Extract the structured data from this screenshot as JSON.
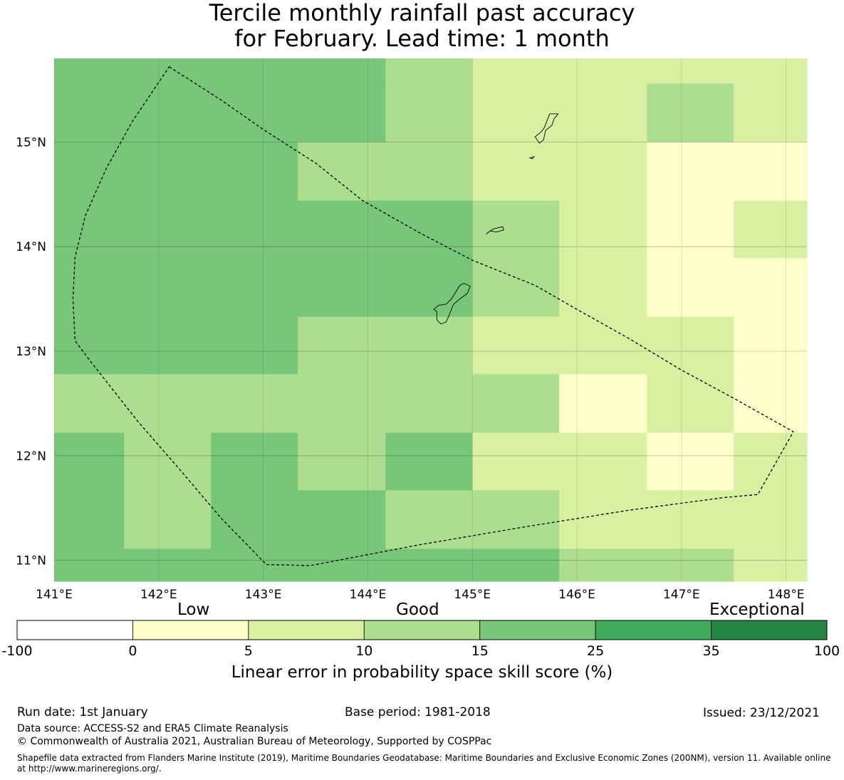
{
  "title": {
    "line1": "Tercile monthly rainfall past accuracy",
    "line2": "for February. Lead time: 1 month"
  },
  "map": {
    "lon_range": [
      141.0,
      148.2
    ],
    "lat_range": [
      10.8,
      15.8
    ],
    "lon_ticks": [
      "141°E",
      "142°E",
      "143°E",
      "144°E",
      "145°E",
      "146°E",
      "147°E",
      "148°E"
    ],
    "lat_ticks": [
      "11°N",
      "12°N",
      "13°N",
      "14°N",
      "15°N"
    ],
    "grid": true,
    "cells": [
      {
        "lon0": 141.0,
        "lon1": 142.5,
        "lat0": 15.56,
        "lat1": 15.8,
        "cat": 4
      },
      {
        "lon0": 142.5,
        "lon1": 144.17,
        "lat0": 15.56,
        "lat1": 15.8,
        "cat": 4
      },
      {
        "lon0": 144.17,
        "lon1": 145.0,
        "lat0": 15.56,
        "lat1": 15.8,
        "cat": 3
      },
      {
        "lon0": 145.0,
        "lon1": 148.2,
        "lat0": 15.56,
        "lat1": 15.8,
        "cat": 2
      },
      {
        "lon0": 141.0,
        "lon1": 144.17,
        "lat0": 15.0,
        "lat1": 15.56,
        "cat": 4
      },
      {
        "lon0": 144.17,
        "lon1": 145.0,
        "lat0": 15.0,
        "lat1": 15.56,
        "cat": 3
      },
      {
        "lon0": 145.0,
        "lon1": 146.67,
        "lat0": 15.0,
        "lat1": 15.56,
        "cat": 2
      },
      {
        "lon0": 146.67,
        "lon1": 147.5,
        "lat0": 15.0,
        "lat1": 15.56,
        "cat": 3
      },
      {
        "lon0": 147.5,
        "lon1": 148.2,
        "lat0": 15.0,
        "lat1": 15.56,
        "cat": 2
      },
      {
        "lon0": 141.0,
        "lon1": 143.33,
        "lat0": 14.44,
        "lat1": 15.0,
        "cat": 4
      },
      {
        "lon0": 143.33,
        "lon1": 145.0,
        "lat0": 14.44,
        "lat1": 15.0,
        "cat": 3
      },
      {
        "lon0": 145.0,
        "lon1": 146.67,
        "lat0": 14.44,
        "lat1": 15.0,
        "cat": 2
      },
      {
        "lon0": 146.67,
        "lon1": 148.2,
        "lat0": 14.44,
        "lat1": 15.0,
        "cat": 1
      },
      {
        "lon0": 141.0,
        "lon1": 145.0,
        "lat0": 13.33,
        "lat1": 14.44,
        "cat": 4
      },
      {
        "lon0": 145.0,
        "lon1": 145.83,
        "lat0": 13.33,
        "lat1": 14.44,
        "cat": 3
      },
      {
        "lon0": 145.83,
        "lon1": 146.67,
        "lat0": 13.33,
        "lat1": 14.44,
        "cat": 2
      },
      {
        "lon0": 146.67,
        "lon1": 147.5,
        "lat0": 13.33,
        "lat1": 14.44,
        "cat": 1
      },
      {
        "lon0": 147.5,
        "lon1": 148.2,
        "lat0": 13.89,
        "lat1": 14.44,
        "cat": 2
      },
      {
        "lon0": 147.5,
        "lon1": 148.2,
        "lat0": 13.33,
        "lat1": 13.89,
        "cat": 1
      },
      {
        "lon0": 141.0,
        "lon1": 143.33,
        "lat0": 12.78,
        "lat1": 13.33,
        "cat": 4
      },
      {
        "lon0": 143.33,
        "lon1": 145.0,
        "lat0": 12.78,
        "lat1": 13.33,
        "cat": 3
      },
      {
        "lon0": 145.0,
        "lon1": 147.5,
        "lat0": 12.78,
        "lat1": 13.33,
        "cat": 2
      },
      {
        "lon0": 147.5,
        "lon1": 148.2,
        "lat0": 12.78,
        "lat1": 13.33,
        "cat": 1
      },
      {
        "lon0": 141.0,
        "lon1": 145.0,
        "lat0": 12.22,
        "lat1": 12.78,
        "cat": 3
      },
      {
        "lon0": 145.0,
        "lon1": 145.83,
        "lat0": 12.22,
        "lat1": 12.78,
        "cat": 3
      },
      {
        "lon0": 145.83,
        "lon1": 146.67,
        "lat0": 12.22,
        "lat1": 12.78,
        "cat": 1
      },
      {
        "lon0": 146.67,
        "lon1": 147.5,
        "lat0": 12.22,
        "lat1": 12.78,
        "cat": 2
      },
      {
        "lon0": 147.5,
        "lon1": 148.2,
        "lat0": 12.22,
        "lat1": 12.78,
        "cat": 1
      },
      {
        "lon0": 141.0,
        "lon1": 141.67,
        "lat0": 11.67,
        "lat1": 12.22,
        "cat": 4
      },
      {
        "lon0": 141.67,
        "lon1": 142.5,
        "lat0": 11.67,
        "lat1": 12.22,
        "cat": 3
      },
      {
        "lon0": 142.5,
        "lon1": 143.33,
        "lat0": 11.67,
        "lat1": 12.22,
        "cat": 4
      },
      {
        "lon0": 143.33,
        "lon1": 144.17,
        "lat0": 11.67,
        "lat1": 12.22,
        "cat": 3
      },
      {
        "lon0": 144.17,
        "lon1": 145.0,
        "lat0": 11.67,
        "lat1": 12.22,
        "cat": 4
      },
      {
        "lon0": 145.0,
        "lon1": 146.67,
        "lat0": 11.67,
        "lat1": 12.22,
        "cat": 2
      },
      {
        "lon0": 146.67,
        "lon1": 147.5,
        "lat0": 11.67,
        "lat1": 12.22,
        "cat": 1
      },
      {
        "lon0": 147.5,
        "lon1": 148.2,
        "lat0": 11.67,
        "lat1": 12.22,
        "cat": 2
      },
      {
        "lon0": 141.0,
        "lon1": 141.67,
        "lat0": 11.11,
        "lat1": 11.67,
        "cat": 4
      },
      {
        "lon0": 141.67,
        "lon1": 142.5,
        "lat0": 11.11,
        "lat1": 11.67,
        "cat": 3
      },
      {
        "lon0": 142.5,
        "lon1": 144.17,
        "lat0": 11.11,
        "lat1": 11.67,
        "cat": 4
      },
      {
        "lon0": 144.17,
        "lon1": 145.83,
        "lat0": 11.11,
        "lat1": 11.67,
        "cat": 3
      },
      {
        "lon0": 145.83,
        "lon1": 148.2,
        "lat0": 11.11,
        "lat1": 11.67,
        "cat": 2
      },
      {
        "lon0": 141.0,
        "lon1": 145.83,
        "lat0": 10.8,
        "lat1": 11.11,
        "cat": 4
      },
      {
        "lon0": 145.83,
        "lon1": 147.5,
        "lat0": 10.8,
        "lat1": 11.11,
        "cat": 3
      },
      {
        "lon0": 147.5,
        "lon1": 148.2,
        "lat0": 10.8,
        "lat1": 11.11,
        "cat": 2
      }
    ],
    "eez_boundary": [
      [
        142.1,
        15.72
      ],
      [
        142.6,
        15.4
      ],
      [
        143.0,
        15.12
      ],
      [
        143.5,
        14.8
      ],
      [
        143.95,
        14.44
      ],
      [
        144.5,
        14.13
      ],
      [
        145.0,
        13.87
      ],
      [
        145.6,
        13.63
      ],
      [
        146.0,
        13.4
      ],
      [
        146.5,
        13.12
      ],
      [
        147.0,
        12.82
      ],
      [
        147.5,
        12.55
      ],
      [
        148.07,
        12.23
      ],
      [
        147.9,
        11.93
      ],
      [
        147.73,
        11.63
      ],
      [
        147.4,
        11.6
      ],
      [
        146.5,
        11.48
      ],
      [
        145.5,
        11.32
      ],
      [
        144.5,
        11.15
      ],
      [
        143.45,
        10.95
      ],
      [
        143.03,
        10.96
      ],
      [
        142.6,
        11.4
      ],
      [
        142.2,
        11.87
      ],
      [
        141.8,
        12.33
      ],
      [
        141.35,
        12.9
      ],
      [
        141.2,
        13.1
      ],
      [
        141.18,
        13.5
      ],
      [
        141.2,
        13.9
      ],
      [
        141.3,
        14.3
      ],
      [
        141.5,
        14.75
      ],
      [
        141.75,
        15.2
      ],
      [
        142.1,
        15.72
      ]
    ],
    "islands": [
      {
        "name_icon": "guam-island",
        "pts": [
          [
            144.92,
            13.65
          ],
          [
            144.98,
            13.62
          ],
          [
            144.95,
            13.55
          ],
          [
            144.88,
            13.5
          ],
          [
            144.82,
            13.45
          ],
          [
            144.78,
            13.35
          ],
          [
            144.75,
            13.28
          ],
          [
            144.7,
            13.26
          ],
          [
            144.66,
            13.3
          ],
          [
            144.66,
            13.38
          ],
          [
            144.63,
            13.4
          ],
          [
            144.68,
            13.44
          ],
          [
            144.75,
            13.45
          ],
          [
            144.8,
            13.5
          ],
          [
            144.85,
            13.58
          ],
          [
            144.88,
            13.63
          ],
          [
            144.92,
            13.65
          ]
        ]
      },
      {
        "name_icon": "rota-island",
        "pts": [
          [
            145.13,
            14.12
          ],
          [
            145.2,
            14.17
          ],
          [
            145.29,
            14.19
          ],
          [
            145.3,
            14.16
          ],
          [
            145.23,
            14.14
          ],
          [
            145.17,
            14.15
          ],
          [
            145.13,
            14.12
          ]
        ]
      },
      {
        "name_icon": "tinian-saipan-island",
        "pts": [
          [
            145.82,
            15.27
          ],
          [
            145.78,
            15.22
          ],
          [
            145.76,
            15.16
          ],
          [
            145.7,
            15.11
          ],
          [
            145.68,
            15.02
          ],
          [
            145.64,
            14.99
          ],
          [
            145.6,
            15.05
          ],
          [
            145.66,
            15.1
          ],
          [
            145.69,
            15.14
          ],
          [
            145.72,
            15.22
          ],
          [
            145.74,
            15.27
          ],
          [
            145.82,
            15.27
          ]
        ]
      },
      {
        "name_icon": "aguijan-island",
        "pts": [
          [
            145.55,
            14.85
          ],
          [
            145.59,
            14.86
          ],
          [
            145.57,
            14.84
          ],
          [
            145.55,
            14.85
          ]
        ]
      }
    ]
  },
  "colorbar": {
    "boundaries": [
      "-100",
      "0",
      "5",
      "10",
      "15",
      "25",
      "35",
      "100"
    ],
    "colors": [
      "#ffffff",
      "#ffffcc",
      "#d9f0a3",
      "#addd8e",
      "#78c679",
      "#41ab5d",
      "#238443"
    ],
    "words": {
      "low": "Low",
      "good": "Good",
      "exceptional": "Exceptional"
    },
    "title": "Linear error in probability space skill score (%)"
  },
  "footer": {
    "run_date": "Run date: 1st January",
    "base_period": "Base period: 1981-2018",
    "issued": "Issued: 23/12/2021",
    "data_source": "Data source: ACCESS-S2 and ERA5 Climate Reanalysis",
    "copyright": "© Commonwealth of Australia 2021, Australian Bureau of Meteorology, Supported by COSPPac",
    "shapefile": "Shapefile data extracted from Flanders Marine Institute (2019), Maritime Boundaries Geodatabase: Maritime Boundaries and Exclusive Economic Zones (200NM), version 11. Available online at http://www.marineregions.org/."
  }
}
